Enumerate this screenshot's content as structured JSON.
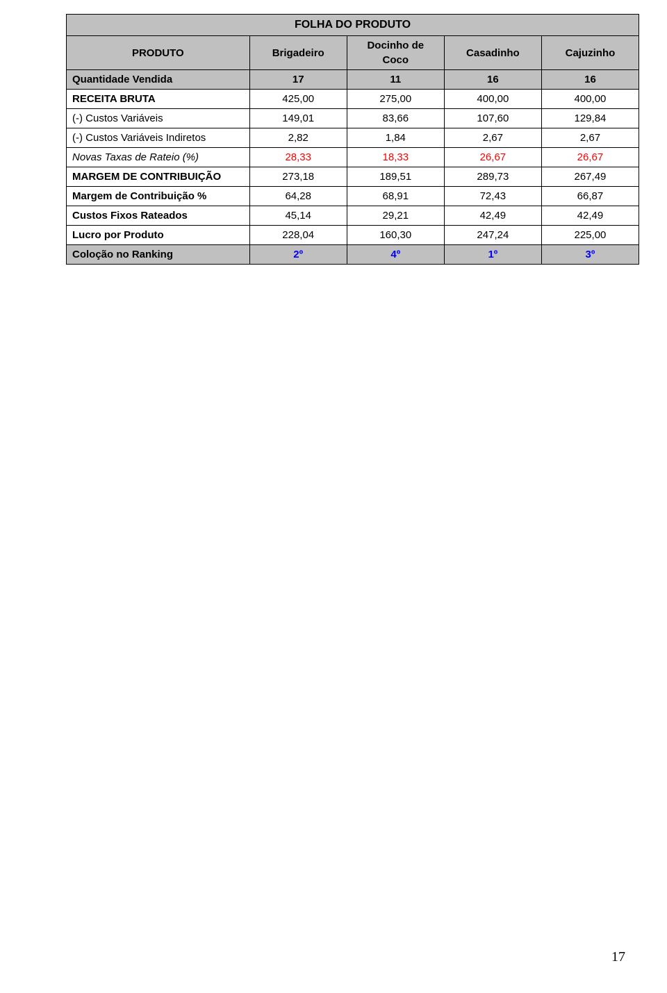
{
  "table": {
    "title": "FOLHA DO PRODUTO",
    "columns": {
      "label_header": "PRODUTO",
      "products": [
        "Brigadeiro",
        "Docinho de Coco",
        "Casadinho",
        "Cajuzinho"
      ]
    },
    "rows": [
      {
        "label": "Quantidade Vendida",
        "style": "bold",
        "row_bg": "header",
        "values": [
          "17",
          "11",
          "16",
          "16"
        ],
        "value_color": "black"
      },
      {
        "label": "RECEITA BRUTA",
        "style": "bold",
        "row_bg": "none",
        "values": [
          "425,00",
          "275,00",
          "400,00",
          "400,00"
        ],
        "value_color": "black"
      },
      {
        "label": "(-) Custos Variáveis",
        "style": "normal",
        "row_bg": "none",
        "values": [
          "149,01",
          "83,66",
          "107,60",
          "129,84"
        ],
        "value_color": "black"
      },
      {
        "label": "(-) Custos Variáveis Indiretos",
        "style": "normal",
        "row_bg": "none",
        "values": [
          "2,82",
          "1,84",
          "2,67",
          "2,67"
        ],
        "value_color": "black"
      },
      {
        "label": "Novas Taxas de Rateio (%)",
        "style": "italic",
        "row_bg": "none",
        "values": [
          "28,33",
          "18,33",
          "26,67",
          "26,67"
        ],
        "value_color": "red"
      },
      {
        "label": "MARGEM DE CONTRIBUIÇÃO",
        "style": "bold",
        "row_bg": "none",
        "values": [
          "273,18",
          "189,51",
          "289,73",
          "267,49"
        ],
        "value_color": "black"
      },
      {
        "label": "Margem de Contribuição %",
        "style": "bold",
        "row_bg": "none",
        "values": [
          "64,28",
          "68,91",
          "72,43",
          "66,87"
        ],
        "value_color": "black"
      },
      {
        "label": "Custos Fixos Rateados",
        "style": "bold",
        "row_bg": "none",
        "values": [
          "45,14",
          "29,21",
          "42,49",
          "42,49"
        ],
        "value_color": "black"
      },
      {
        "label": "Lucro por Produto",
        "style": "bold",
        "row_bg": "none",
        "values": [
          "228,04",
          "160,30",
          "247,24",
          "225,00"
        ],
        "value_color": "black"
      },
      {
        "label": "Coloção no Ranking",
        "style": "bold",
        "row_bg": "ranking",
        "values": [
          "2º",
          "4º",
          "1º",
          "3º"
        ],
        "value_color": "blue"
      }
    ]
  },
  "page_number": "17",
  "colors": {
    "header_bg": "#c0c0c0",
    "border": "#000000",
    "red": "#ff0000",
    "blue": "#0000ff",
    "background": "#ffffff"
  }
}
